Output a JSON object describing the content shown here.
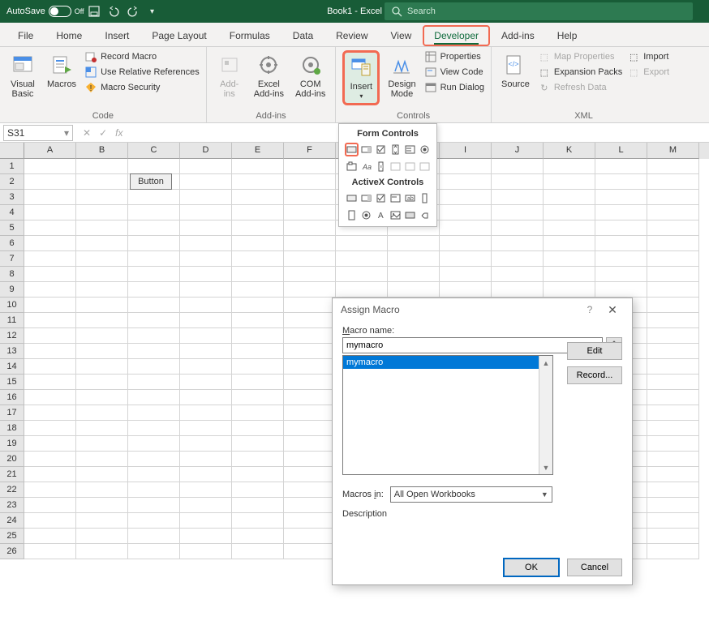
{
  "titlebar": {
    "autosave": "AutoSave",
    "autosave_state": "Off",
    "doc_title": "Book1 - Excel",
    "search_placeholder": "Search"
  },
  "tabs": [
    "File",
    "Home",
    "Insert",
    "Page Layout",
    "Formulas",
    "Data",
    "Review",
    "View",
    "Developer",
    "Add-ins",
    "Help"
  ],
  "active_tab": "Developer",
  "ribbon": {
    "code": {
      "label": "Code",
      "visual_basic": "Visual\nBasic",
      "macros": "Macros",
      "record": "Record Macro",
      "relative": "Use Relative References",
      "security": "Macro Security"
    },
    "addins": {
      "label": "Add-ins",
      "addins": "Add-\nins",
      "excel": "Excel\nAdd-ins",
      "com": "COM\nAdd-ins"
    },
    "controls": {
      "label": "Controls",
      "insert": "Insert",
      "design": "Design\nMode",
      "properties": "Properties",
      "viewcode": "View Code",
      "rundialog": "Run Dialog"
    },
    "xml": {
      "label": "XML",
      "source": "Source",
      "map": "Map Properties",
      "expansion": "Expansion Packs",
      "refresh": "Refresh Data",
      "import": "Import",
      "export": "Export"
    }
  },
  "name_box": "S31",
  "columns": [
    "A",
    "B",
    "C",
    "D",
    "E",
    "F",
    "G",
    "H",
    "I",
    "J",
    "K",
    "L",
    "M"
  ],
  "rows": 26,
  "sheet_button": "Button",
  "insert_dropdown": {
    "form_title": "Form Controls",
    "activex_title": "ActiveX Controls"
  },
  "dialog": {
    "title": "Assign Macro",
    "name_label": "Macro name:",
    "name_value": "mymacro",
    "list_item": "mymacro",
    "edit": "Edit",
    "record": "Record...",
    "macros_in_label": "Macros in:",
    "macros_in_value": "All Open Workbooks",
    "description": "Description",
    "ok": "OK",
    "cancel": "Cancel"
  },
  "colors": {
    "titlebar_bg": "#185c37",
    "highlight_border": "#f26a52",
    "selection": "#0078d7"
  }
}
